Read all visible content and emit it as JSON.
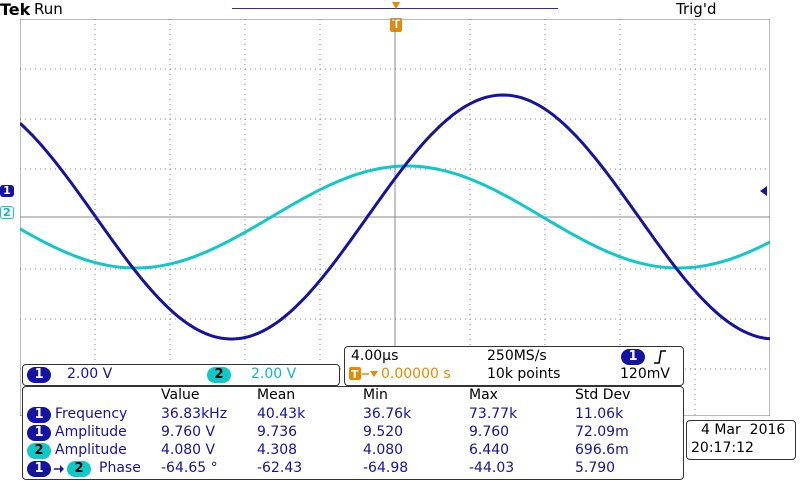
{
  "header": {
    "brand": "Tek",
    "run_state": "Run",
    "trigger_status": "Trig'd",
    "trigger_marker": "T"
  },
  "channels": {
    "ch1": {
      "label": "1",
      "scale": "2.00 V",
      "color": "#1414a0"
    },
    "ch2": {
      "label": "2",
      "scale": "2.00 V",
      "color": "#10c8c8"
    }
  },
  "acquisition": {
    "timebase": "4.00µs",
    "sample_rate": "250MS/s",
    "trigger_delay": "0.00000 s",
    "record_length": "10k points",
    "trigger_source": "1",
    "trigger_slope_icon": "rising-edge-icon",
    "trigger_level": "120mV"
  },
  "measurements": {
    "headers": [
      "Value",
      "Mean",
      "Min",
      "Max",
      "Std Dev"
    ],
    "rows": [
      {
        "ch": "1",
        "ch_b": "",
        "name": "Frequency",
        "value": "36.83kHz",
        "mean": "40.43k",
        "min": "36.76k",
        "max": "73.77k",
        "std": "11.06k"
      },
      {
        "ch": "1",
        "ch_b": "",
        "name": "Amplitude",
        "value": "9.760 V",
        "mean": "9.736",
        "min": "9.520",
        "max": "9.760",
        "std": "72.09m"
      },
      {
        "ch": "2",
        "ch_b": "",
        "name": "Amplitude",
        "value": "4.080 V",
        "mean": "4.308",
        "min": "4.080",
        "max": "6.440",
        "std": "696.6m"
      },
      {
        "ch": "1",
        "ch_b": "2",
        "name": "Phase",
        "value": "-64.65 °",
        "mean": "-62.43",
        "min": "-64.98",
        "max": "-44.03",
        "std": "5.790"
      }
    ]
  },
  "datetime": {
    "date": "4 Mar  2016",
    "time": "20:17:12"
  }
}
